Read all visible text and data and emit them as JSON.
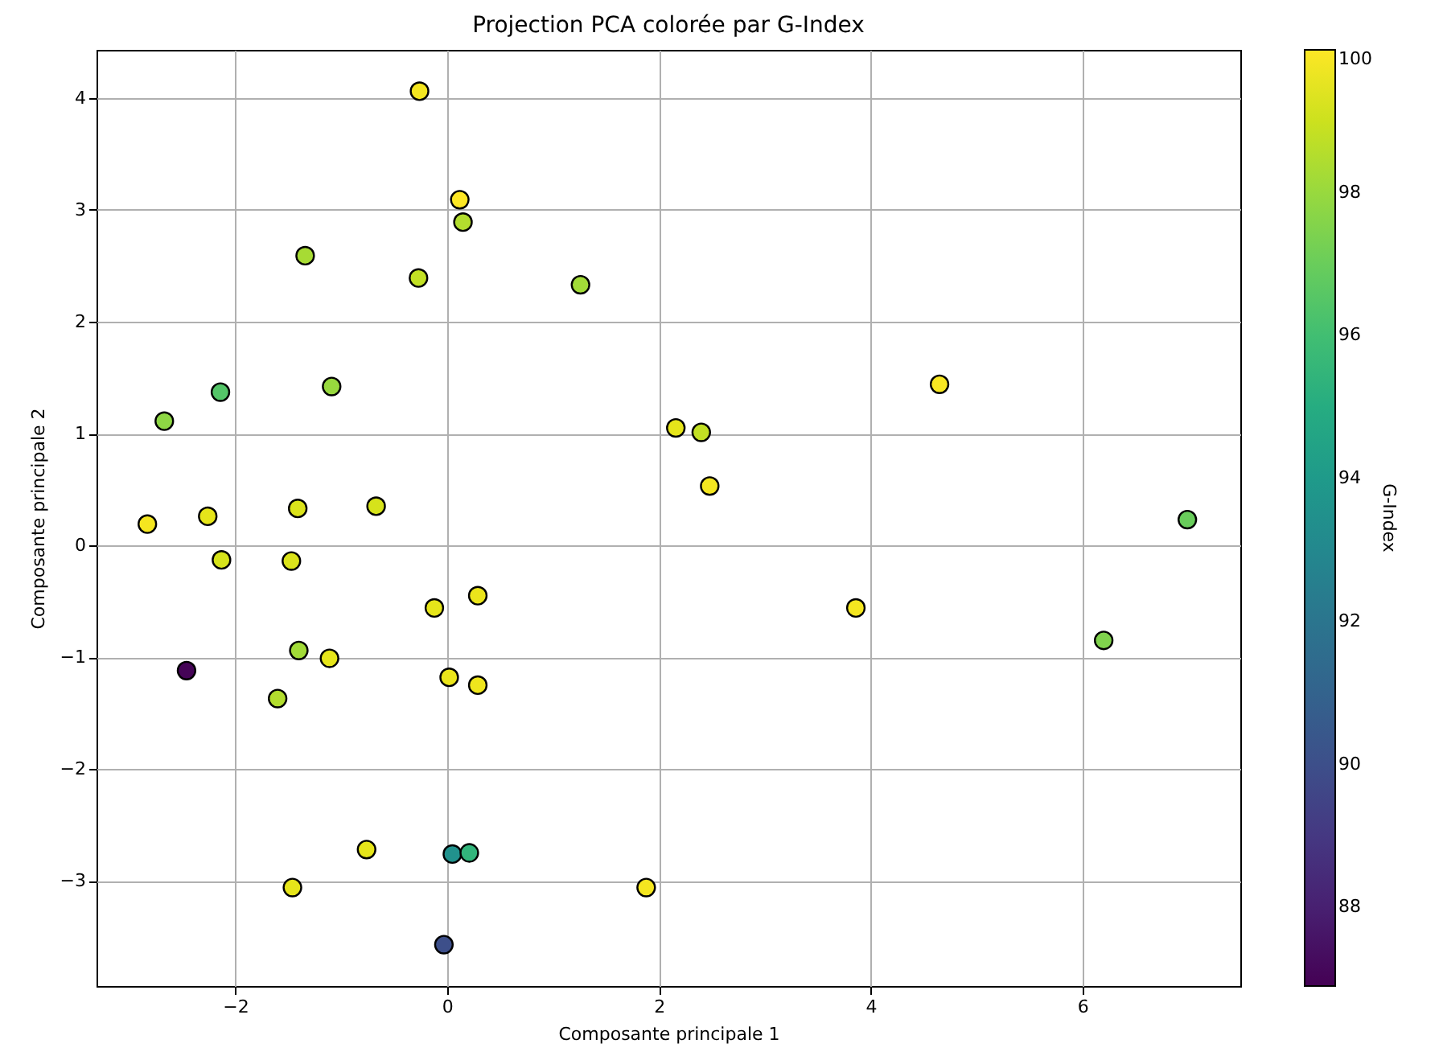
{
  "chart_data": {
    "type": "scatter",
    "title": "Projection PCA colorée par G-Index",
    "xlabel": "Composante principale 1",
    "ylabel": "Composante principale 2",
    "clabel": "G-Index",
    "x": [
      -0.26,
      0.12,
      0.15,
      -1.34,
      -0.27,
      1.26,
      -2.14,
      -2.67,
      -1.09,
      4.65,
      2.16,
      2.4,
      2.48,
      6.99,
      -2.83,
      -2.26,
      -1.41,
      -0.67,
      -2.13,
      -1.47,
      -0.12,
      0.29,
      3.86,
      6.2,
      -2.46,
      -1.4,
      -1.11,
      -1.6,
      0.02,
      0.29,
      -0.76,
      0.05,
      0.21,
      -1.46,
      1.88,
      -0.03
    ],
    "values": [
      4.06,
      3.09,
      2.89,
      2.59,
      2.39,
      2.33,
      1.37,
      1.11,
      1.42,
      1.44,
      1.05,
      1.01,
      0.53,
      0.23,
      0.19,
      0.26,
      0.33,
      0.35,
      -0.13,
      -0.14,
      -0.56,
      -0.45,
      -0.56,
      -0.85,
      -1.12,
      -0.94,
      -1.01,
      -1.37,
      -1.18,
      -1.25,
      -2.72,
      -2.76,
      -2.75,
      -3.06,
      -3.06,
      -3.57
    ],
    "cvalues": [
      99.8,
      100,
      98.5,
      98.3,
      98.8,
      98.2,
      96.5,
      97.8,
      98,
      99.9,
      99.5,
      98.8,
      99.8,
      97,
      99.8,
      99.5,
      99.3,
      99.2,
      99.2,
      99.3,
      99.5,
      99.6,
      99.8,
      97.5,
      87,
      98.2,
      99.5,
      98.5,
      99.6,
      99.7,
      99.5,
      93.5,
      95.5,
      99.5,
      99.8,
      90
    ],
    "clim": [
      86.9,
      100
    ],
    "cticks": [
      88,
      90,
      92,
      94,
      96,
      98,
      100
    ],
    "xlim": [
      -3.31,
      7.49
    ],
    "ylim": [
      -3.94,
      4.43
    ],
    "xticks": [
      -2,
      0,
      2,
      4,
      6
    ],
    "yticks": [
      -3,
      -2,
      -1,
      0,
      1,
      2,
      3,
      4
    ],
    "grid": true,
    "marker": "circle"
  }
}
